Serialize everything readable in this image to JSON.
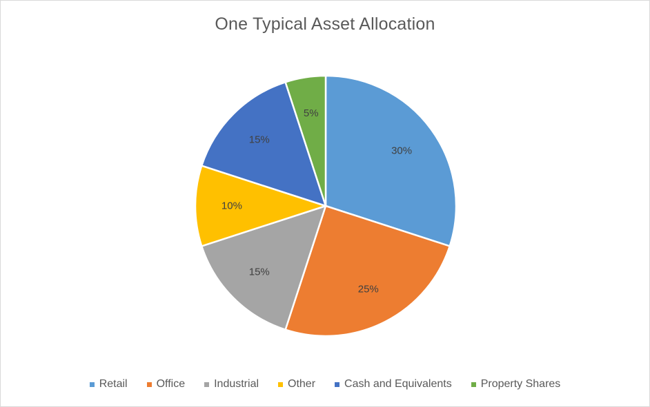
{
  "chart_data": {
    "type": "pie",
    "title": "One Typical Asset Allocation",
    "categories": [
      "Retail",
      "Office",
      "Industrial",
      "Other",
      "Cash and Equivalents",
      "Property Shares"
    ],
    "values": [
      30,
      25,
      15,
      10,
      15,
      5
    ],
    "labels": [
      "30%",
      "25%",
      "15%",
      "10%",
      "15%",
      "5%"
    ],
    "colors": [
      "#5b9bd5",
      "#ed7d31",
      "#a5a5a5",
      "#ffc000",
      "#4472c4",
      "#70ad47"
    ],
    "start_angle_deg": 0,
    "direction": "clockwise",
    "legend_position": "bottom"
  }
}
